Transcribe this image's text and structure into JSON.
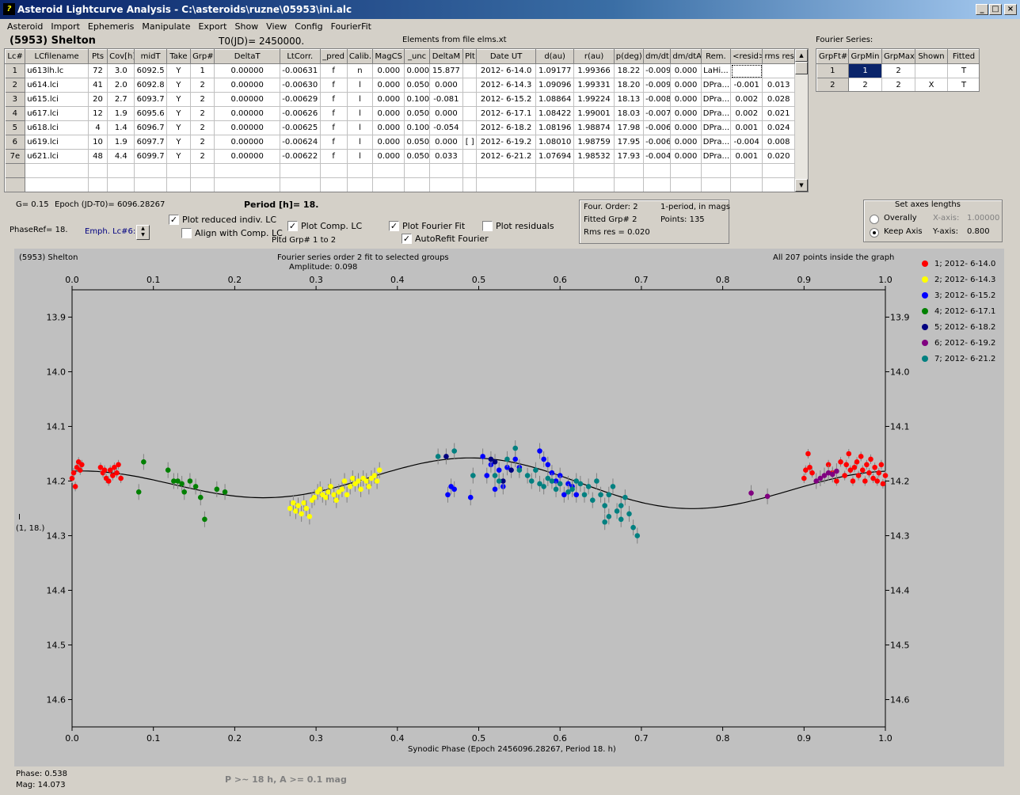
{
  "window": {
    "title": "Asteroid Lightcurve Analysis - C:\\asteroids\\ruzne\\05953\\ini.alc",
    "min": "_",
    "max": "□",
    "close": "×"
  },
  "menu": [
    "Asteroid",
    "Import",
    "Ephemeris",
    "Manipulate",
    "Export",
    "Show",
    "View",
    "Config",
    "FourierFit"
  ],
  "header": {
    "asteroid": "(5953) Shelton",
    "t0": "T0(JD)= 2450000.",
    "elements": "Elements from file elms.xt",
    "fourier_title": "Fourier Series:"
  },
  "table": {
    "columns": [
      "Lc#",
      "LCfilename",
      "Pts",
      "Cov[h]",
      "midT",
      "Take",
      "Grp#",
      "DeltaT",
      "LtCorr.",
      "_pred",
      "Calib.",
      "MagCS",
      "_unc",
      "DeltaM",
      "Plt",
      "Date UT",
      "d(au)",
      "r(au)",
      "p(deg)",
      "dm/dt",
      "dm/dtA",
      "Rem.",
      "<resid>",
      "rms res"
    ],
    "rows": [
      [
        "1",
        "u613lh.lc",
        "72",
        "3.0",
        "6092.5",
        "Y",
        "1",
        "0.00000",
        "-0.00631",
        "f",
        "n",
        "0.000",
        "0.000",
        "15.877",
        "",
        "2012- 6-14.0",
        "1.09177",
        "1.99366",
        "18.22",
        "-0.009",
        "0.000",
        "LaHi...",
        "",
        ""
      ],
      [
        "2",
        "u614.lci",
        "41",
        "2.0",
        "6092.8",
        "Y",
        "2",
        "0.00000",
        "-0.00630",
        "f",
        "l",
        "0.000",
        "0.050",
        "0.000",
        "",
        "2012- 6-14.3",
        "1.09096",
        "1.99331",
        "18.20",
        "-0.009",
        "0.000",
        "DPra...",
        "-0.001",
        "0.013"
      ],
      [
        "3",
        "u615.lci",
        "20",
        "2.7",
        "6093.7",
        "Y",
        "2",
        "0.00000",
        "-0.00629",
        "f",
        "l",
        "0.000",
        "0.100",
        "-0.081",
        "",
        "2012- 6-15.2",
        "1.08864",
        "1.99224",
        "18.13",
        "-0.008",
        "0.000",
        "DPra...",
        "0.002",
        "0.028"
      ],
      [
        "4",
        "u617.lci",
        "12",
        "1.9",
        "6095.6",
        "Y",
        "2",
        "0.00000",
        "-0.00626",
        "f",
        "l",
        "0.000",
        "0.050",
        "0.000",
        "",
        "2012- 6-17.1",
        "1.08422",
        "1.99001",
        "18.03",
        "-0.007",
        "0.000",
        "DPra...",
        "0.002",
        "0.021"
      ],
      [
        "5",
        "u618.lci",
        "4",
        "1.4",
        "6096.7",
        "Y",
        "2",
        "0.00000",
        "-0.00625",
        "f",
        "l",
        "0.000",
        "0.100",
        "-0.054",
        "",
        "2012- 6-18.2",
        "1.08196",
        "1.98874",
        "17.98",
        "-0.006",
        "0.000",
        "DPra...",
        "0.001",
        "0.024"
      ],
      [
        "6",
        "u619.lci",
        "10",
        "1.9",
        "6097.7",
        "Y",
        "2",
        "0.00000",
        "-0.00624",
        "f",
        "l",
        "0.000",
        "0.050",
        "0.000",
        "[ ]",
        "2012- 6-19.2",
        "1.08010",
        "1.98759",
        "17.95",
        "-0.006",
        "0.000",
        "DPra...",
        "-0.004",
        "0.008"
      ],
      [
        "7e",
        "u621.lci",
        "48",
        "4.4",
        "6099.7",
        "Y",
        "2",
        "0.00000",
        "-0.00622",
        "f",
        "l",
        "0.000",
        "0.050",
        "0.033",
        "",
        "2012- 6-21.2",
        "1.07694",
        "1.98532",
        "17.93",
        "-0.004",
        "0.000",
        "DPra...",
        "0.001",
        "0.020"
      ]
    ]
  },
  "fourier_table": {
    "columns": [
      "GrpFt#",
      "GrpMin",
      "GrpMax",
      "Shown",
      "Fitted"
    ],
    "rows": [
      [
        "1",
        "1",
        "2",
        "",
        "T"
      ],
      [
        "2",
        "2",
        "2",
        "X",
        "T"
      ]
    ]
  },
  "params": {
    "g": "G= 0.15",
    "epoch": "Epoch (JD-T0)= 6096.28267",
    "period": "Period [h]= 18.",
    "phaseref": "PhaseRef= 18.",
    "emph": "Emph. Lc#6:"
  },
  "options": {
    "plot_reduced": "Plot reduced indiv. LC",
    "align_comp": "Align with Comp. LC",
    "plot_comp": "Plot Comp. LC",
    "pltd_grp": "Pltd Grp#  1   to   2",
    "plot_fourier": "Plot Fourier Fit",
    "autorefit": "AutoRefit Fourier",
    "plot_residuals": "Plot residuals"
  },
  "fitinfo": {
    "order": "Four. Order:  2",
    "period_mode": "1-period, in mags",
    "fitted_grp": "Fitted Grp# 2",
    "points": "Points: 135",
    "rms": "Rms res     = 0.020"
  },
  "axes_box": {
    "title": "Set axes lengths",
    "overally": "Overally",
    "keep": "Keep Axis",
    "xaxis": "X-axis:",
    "xval": "1.00000",
    "yaxis": "Y-axis:",
    "yval": "0.800"
  },
  "plot": {
    "asteroid": "(5953) Shelton",
    "title": "Fourier series order 2 fit to selected groups",
    "amplitude": "Amplitude: 0.098",
    "inside": "All 207 points inside the graph",
    "xlabel": "Synodic Phase (Epoch 2456096.28267, Period 18. h)",
    "ylabel1": "I",
    "ylabel2": "(1, 18.)"
  },
  "status": {
    "phase": "Phase:  0.538",
    "mag": "Mag:    14.073",
    "estimate": "P >~ 18 h, A >= 0.1 mag"
  },
  "chart_data": {
    "type": "scatter",
    "x_ticks": [
      "0.0",
      "0.1",
      "0.2",
      "0.3",
      "0.4",
      "0.5",
      "0.6",
      "0.7",
      "0.8",
      "0.9",
      "1.0"
    ],
    "y_ticks": [
      "13.9",
      "14.0",
      "14.1",
      "14.2",
      "14.3",
      "14.4",
      "14.5",
      "14.6"
    ],
    "xlim": [
      0,
      1
    ],
    "ylim": [
      14.65,
      13.85
    ],
    "series": [
      {
        "name": "1; 2012- 6-14.0",
        "color": "#ff0000",
        "points": [
          [
            0.0,
            14.195
          ],
          [
            0.002,
            14.185
          ],
          [
            0.004,
            14.21
          ],
          [
            0.006,
            14.175
          ],
          [
            0.008,
            14.165
          ],
          [
            0.01,
            14.18
          ],
          [
            0.012,
            14.17
          ],
          [
            0.035,
            14.175
          ],
          [
            0.038,
            14.185
          ],
          [
            0.04,
            14.18
          ],
          [
            0.042,
            14.195
          ],
          [
            0.045,
            14.2
          ],
          [
            0.047,
            14.18
          ],
          [
            0.05,
            14.19
          ],
          [
            0.052,
            14.175
          ],
          [
            0.055,
            14.185
          ],
          [
            0.057,
            14.17
          ],
          [
            0.06,
            14.195
          ],
          [
            0.9,
            14.195
          ],
          [
            0.902,
            14.18
          ],
          [
            0.905,
            14.15
          ],
          [
            0.907,
            14.175
          ],
          [
            0.91,
            14.185
          ],
          [
            0.93,
            14.17
          ],
          [
            0.935,
            14.185
          ],
          [
            0.94,
            14.2
          ],
          [
            0.945,
            14.165
          ],
          [
            0.95,
            14.19
          ],
          [
            0.952,
            14.17
          ],
          [
            0.955,
            14.15
          ],
          [
            0.957,
            14.18
          ],
          [
            0.96,
            14.2
          ],
          [
            0.962,
            14.175
          ],
          [
            0.965,
            14.165
          ],
          [
            0.967,
            14.19
          ],
          [
            0.97,
            14.155
          ],
          [
            0.972,
            14.18
          ],
          [
            0.975,
            14.2
          ],
          [
            0.977,
            14.17
          ],
          [
            0.98,
            14.185
          ],
          [
            0.982,
            14.16
          ],
          [
            0.985,
            14.195
          ],
          [
            0.987,
            14.175
          ],
          [
            0.99,
            14.2
          ],
          [
            0.992,
            14.185
          ],
          [
            0.995,
            14.17
          ],
          [
            0.997,
            14.205
          ],
          [
            1.0,
            14.19
          ]
        ]
      },
      {
        "name": "2; 2012- 6-14.3",
        "color": "#ffff00",
        "points": [
          [
            0.268,
            14.25
          ],
          [
            0.272,
            14.24
          ],
          [
            0.275,
            14.255
          ],
          [
            0.278,
            14.245
          ],
          [
            0.282,
            14.26
          ],
          [
            0.285,
            14.24
          ],
          [
            0.288,
            14.25
          ],
          [
            0.292,
            14.265
          ],
          [
            0.295,
            14.235
          ],
          [
            0.298,
            14.23
          ],
          [
            0.302,
            14.22
          ],
          [
            0.305,
            14.215
          ],
          [
            0.308,
            14.225
          ],
          [
            0.312,
            14.23
          ],
          [
            0.315,
            14.22
          ],
          [
            0.318,
            14.21
          ],
          [
            0.322,
            14.225
          ],
          [
            0.325,
            14.235
          ],
          [
            0.328,
            14.22
          ],
          [
            0.332,
            14.215
          ],
          [
            0.335,
            14.2
          ],
          [
            0.338,
            14.225
          ],
          [
            0.342,
            14.21
          ],
          [
            0.345,
            14.195
          ],
          [
            0.348,
            14.205
          ],
          [
            0.352,
            14.2
          ],
          [
            0.355,
            14.215
          ],
          [
            0.358,
            14.195
          ],
          [
            0.362,
            14.2
          ],
          [
            0.365,
            14.21
          ],
          [
            0.368,
            14.195
          ],
          [
            0.372,
            14.19
          ],
          [
            0.375,
            14.2
          ],
          [
            0.378,
            14.18
          ]
        ]
      },
      {
        "name": "3; 2012- 6-15.2",
        "color": "#0000ff",
        "points": [
          [
            0.462,
            14.225
          ],
          [
            0.466,
            14.21
          ],
          [
            0.47,
            14.215
          ],
          [
            0.49,
            14.23
          ],
          [
            0.505,
            14.155
          ],
          [
            0.51,
            14.19
          ],
          [
            0.515,
            14.17
          ],
          [
            0.52,
            14.215
          ],
          [
            0.525,
            14.18
          ],
          [
            0.53,
            14.21
          ],
          [
            0.535,
            14.175
          ],
          [
            0.545,
            14.16
          ],
          [
            0.55,
            14.175
          ],
          [
            0.575,
            14.145
          ],
          [
            0.58,
            14.16
          ],
          [
            0.585,
            14.17
          ],
          [
            0.59,
            14.185
          ],
          [
            0.595,
            14.2
          ],
          [
            0.6,
            14.19
          ],
          [
            0.605,
            14.225
          ],
          [
            0.61,
            14.205
          ],
          [
            0.615,
            14.21
          ],
          [
            0.62,
            14.225
          ]
        ]
      },
      {
        "name": "4; 2012- 6-17.1",
        "color": "#008000",
        "points": [
          [
            0.082,
            14.22
          ],
          [
            0.088,
            14.165
          ],
          [
            0.118,
            14.18
          ],
          [
            0.125,
            14.2
          ],
          [
            0.13,
            14.2
          ],
          [
            0.135,
            14.205
          ],
          [
            0.138,
            14.22
          ],
          [
            0.145,
            14.2
          ],
          [
            0.152,
            14.21
          ],
          [
            0.158,
            14.23
          ],
          [
            0.163,
            14.27
          ],
          [
            0.178,
            14.215
          ],
          [
            0.188,
            14.22
          ]
        ]
      },
      {
        "name": "5; 2012- 6-18.2",
        "color": "#000080",
        "points": [
          [
            0.46,
            14.155
          ],
          [
            0.515,
            14.16
          ],
          [
            0.52,
            14.165
          ],
          [
            0.53,
            14.2
          ],
          [
            0.54,
            14.18
          ]
        ]
      },
      {
        "name": "6; 2012- 6-19.2",
        "color": "#800080",
        "points": [
          [
            0.835,
            14.222
          ],
          [
            0.855,
            14.228
          ],
          [
            0.915,
            14.2
          ],
          [
            0.92,
            14.195
          ],
          [
            0.925,
            14.19
          ],
          [
            0.93,
            14.185
          ],
          [
            0.935,
            14.188
          ],
          [
            0.94,
            14.182
          ]
        ]
      },
      {
        "name": "7; 2012- 6-21.2",
        "color": "#008080",
        "points": [
          [
            0.45,
            14.155
          ],
          [
            0.47,
            14.145
          ],
          [
            0.493,
            14.19
          ],
          [
            0.52,
            14.19
          ],
          [
            0.525,
            14.2
          ],
          [
            0.535,
            14.16
          ],
          [
            0.545,
            14.14
          ],
          [
            0.55,
            14.18
          ],
          [
            0.56,
            14.19
          ],
          [
            0.565,
            14.2
          ],
          [
            0.57,
            14.18
          ],
          [
            0.575,
            14.205
          ],
          [
            0.58,
            14.21
          ],
          [
            0.585,
            14.195
          ],
          [
            0.59,
            14.2
          ],
          [
            0.595,
            14.215
          ],
          [
            0.6,
            14.205
          ],
          [
            0.61,
            14.22
          ],
          [
            0.615,
            14.215
          ],
          [
            0.62,
            14.2
          ],
          [
            0.625,
            14.205
          ],
          [
            0.63,
            14.225
          ],
          [
            0.635,
            14.21
          ],
          [
            0.64,
            14.235
          ],
          [
            0.645,
            14.2
          ],
          [
            0.65,
            14.225
          ],
          [
            0.655,
            14.245
          ],
          [
            0.66,
            14.225
          ],
          [
            0.665,
            14.21
          ],
          [
            0.67,
            14.255
          ],
          [
            0.675,
            14.245
          ],
          [
            0.68,
            14.23
          ],
          [
            0.685,
            14.26
          ],
          [
            0.69,
            14.285
          ],
          [
            0.695,
            14.3
          ],
          [
            0.66,
            14.265
          ],
          [
            0.655,
            14.275
          ],
          [
            0.675,
            14.27
          ]
        ]
      }
    ],
    "fit_curve": {
      "mean": 14.205,
      "a1": 0.0,
      "b1": 0.0,
      "a2": 0.0,
      "b2": 0.0
    }
  }
}
